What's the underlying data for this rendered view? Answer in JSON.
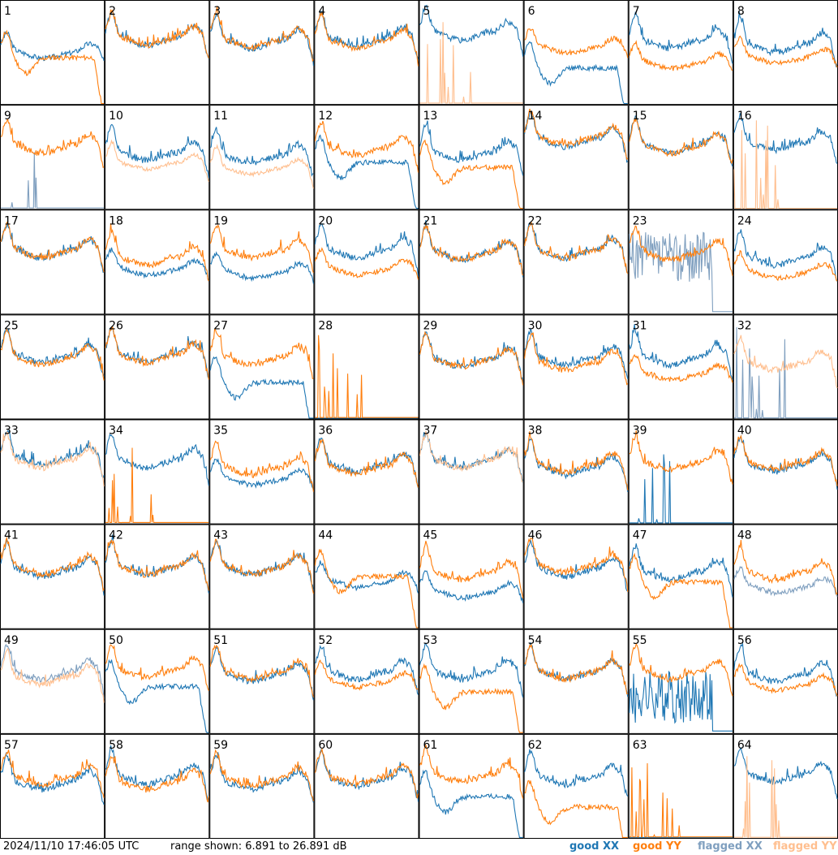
{
  "footer": {
    "timestamp": "2024/11/10 17:46:05 UTC",
    "range_text": "range shown: 6.891 to 26.891 dB"
  },
  "legend": {
    "good_xx": "good XX",
    "good_yy": "good YY",
    "flagged_xx": "flagged XX",
    "flagged_yy": "flagged YY"
  },
  "colors": {
    "good_xx": "#1f77b4",
    "good_yy": "#ff7f0e",
    "flagged_xx": "#7f9fbf",
    "flagged_yy": "#ffbf8f",
    "frame": "#000000"
  },
  "chart_data": {
    "type": "line",
    "grid_layout": [
      8,
      8
    ],
    "ylim": [
      6.891,
      26.891
    ],
    "yunit": "dB",
    "panel_labels": [
      "1",
      "2",
      "3",
      "4",
      "5",
      "6",
      "7",
      "8",
      "9",
      "10",
      "11",
      "12",
      "13",
      "14",
      "15",
      "16",
      "17",
      "18",
      "19",
      "20",
      "21",
      "22",
      "23",
      "24",
      "25",
      "26",
      "27",
      "28",
      "29",
      "30",
      "31",
      "32",
      "33",
      "34",
      "35",
      "36",
      "37",
      "38",
      "39",
      "40",
      "41",
      "42",
      "43",
      "44",
      "45",
      "46",
      "47",
      "48",
      "49",
      "50",
      "51",
      "52",
      "53",
      "54",
      "55",
      "56",
      "57",
      "58",
      "59",
      "60",
      "61",
      "62",
      "63",
      "64"
    ],
    "panels": [
      {
        "label": "1",
        "xx": "good",
        "yy": "good",
        "xx_shape": "mid",
        "yy_shape": "drop",
        "xx_level": 0.55,
        "yy_level": 0.45
      },
      {
        "label": "2",
        "xx": "good",
        "yy": "good",
        "xx_shape": "normal",
        "yy_shape": "normal",
        "xx_level": 0.65,
        "yy_level": 0.65
      },
      {
        "label": "3",
        "xx": "good",
        "yy": "good",
        "xx_shape": "normal",
        "yy_shape": "normal",
        "xx_level": 0.62,
        "yy_level": 0.63
      },
      {
        "label": "4",
        "xx": "good",
        "yy": "good",
        "xx_shape": "normal",
        "yy_shape": "normal",
        "xx_level": 0.64,
        "yy_level": 0.62
      },
      {
        "label": "5",
        "xx": "good",
        "yy": "flagged",
        "xx_shape": "normal",
        "yy_shape": "spikes",
        "xx_level": 0.7,
        "yy_level": 0.05
      },
      {
        "label": "6",
        "xx": "good",
        "yy": "good",
        "xx_shape": "drop",
        "yy_shape": "mid",
        "xx_level": 0.35,
        "yy_level": 0.6
      },
      {
        "label": "7",
        "xx": "good",
        "yy": "good",
        "xx_shape": "normal",
        "yy_shape": "mid",
        "xx_level": 0.62,
        "yy_level": 0.45
      },
      {
        "label": "8",
        "xx": "good",
        "yy": "good",
        "xx_shape": "normal",
        "yy_shape": "mid",
        "xx_level": 0.58,
        "yy_level": 0.5
      },
      {
        "label": "9",
        "xx": "flagged",
        "yy": "good",
        "xx_shape": "spikes",
        "yy_shape": "normal",
        "xx_level": 0.05,
        "yy_level": 0.62
      },
      {
        "label": "10",
        "xx": "good",
        "yy": "flagged",
        "xx_shape": "normal",
        "yy_shape": "low",
        "xx_level": 0.55,
        "yy_level": 0.45
      },
      {
        "label": "11",
        "xx": "good",
        "yy": "flagged",
        "xx_shape": "normal",
        "yy_shape": "low",
        "xx_level": 0.52,
        "yy_level": 0.4
      },
      {
        "label": "12",
        "xx": "good",
        "yy": "good",
        "xx_shape": "drop",
        "yy_shape": "normal",
        "xx_level": 0.45,
        "yy_level": 0.6
      },
      {
        "label": "13",
        "xx": "good",
        "yy": "good",
        "xx_shape": "normal",
        "yy_shape": "drop",
        "xx_level": 0.55,
        "yy_level": 0.4
      },
      {
        "label": "14",
        "xx": "good",
        "yy": "good",
        "xx_shape": "normal",
        "yy_shape": "normal",
        "xx_level": 0.68,
        "yy_level": 0.7
      },
      {
        "label": "15",
        "xx": "good",
        "yy": "good",
        "xx_shape": "normal",
        "yy_shape": "normal",
        "xx_level": 0.63,
        "yy_level": 0.62
      },
      {
        "label": "16",
        "xx": "good",
        "yy": "flagged",
        "xx_shape": "normal",
        "yy_shape": "spikes",
        "xx_level": 0.65,
        "yy_level": 0.03
      },
      {
        "label": "17",
        "xx": "good",
        "yy": "good",
        "xx_shape": "normal",
        "yy_shape": "normal",
        "xx_level": 0.62,
        "yy_level": 0.62
      },
      {
        "label": "18",
        "xx": "good",
        "yy": "good",
        "xx_shape": "mid",
        "yy_shape": "normal",
        "xx_level": 0.48,
        "yy_level": 0.55
      },
      {
        "label": "19",
        "xx": "good",
        "yy": "good",
        "xx_shape": "mid",
        "yy_shape": "normal",
        "xx_level": 0.45,
        "yy_level": 0.62
      },
      {
        "label": "20",
        "xx": "good",
        "yy": "good",
        "xx_shape": "normal",
        "yy_shape": "mid",
        "xx_level": 0.62,
        "yy_level": 0.48
      },
      {
        "label": "21",
        "xx": "good",
        "yy": "good",
        "xx_shape": "normal",
        "yy_shape": "normal",
        "xx_level": 0.6,
        "yy_level": 0.6
      },
      {
        "label": "22",
        "xx": "good",
        "yy": "good",
        "xx_shape": "normal",
        "yy_shape": "normal",
        "xx_level": 0.62,
        "yy_level": 0.62
      },
      {
        "label": "23",
        "xx": "flagged",
        "yy": "good",
        "xx_shape": "noise",
        "yy_shape": "normal",
        "xx_level": 0.3,
        "yy_level": 0.6
      },
      {
        "label": "24",
        "xx": "good",
        "yy": "good",
        "xx_shape": "normal",
        "yy_shape": "mid",
        "xx_level": 0.55,
        "yy_level": 0.45
      },
      {
        "label": "25",
        "xx": "good",
        "yy": "good",
        "xx_shape": "normal",
        "yy_shape": "normal",
        "xx_level": 0.62,
        "yy_level": 0.6
      },
      {
        "label": "26",
        "xx": "good",
        "yy": "good",
        "xx_shape": "normal",
        "yy_shape": "normal",
        "xx_level": 0.63,
        "yy_level": 0.62
      },
      {
        "label": "27",
        "xx": "good",
        "yy": "good",
        "xx_shape": "drop",
        "yy_shape": "normal",
        "xx_level": 0.35,
        "yy_level": 0.6
      },
      {
        "label": "28",
        "xx": "good",
        "yy": "good",
        "xx_shape": "flat",
        "yy_shape": "spikes",
        "xx_level": 0.0,
        "yy_level": 0.05
      },
      {
        "label": "29",
        "xx": "good",
        "yy": "good",
        "xx_shape": "normal",
        "yy_shape": "normal",
        "xx_level": 0.58,
        "yy_level": 0.58
      },
      {
        "label": "30",
        "xx": "good",
        "yy": "good",
        "xx_shape": "normal",
        "yy_shape": "normal",
        "xx_level": 0.6,
        "yy_level": 0.55
      },
      {
        "label": "31",
        "xx": "good",
        "yy": "good",
        "xx_shape": "normal",
        "yy_shape": "mid",
        "xx_level": 0.6,
        "yy_level": 0.48
      },
      {
        "label": "32",
        "xx": "flagged",
        "yy": "flagged",
        "xx_shape": "spikes",
        "yy_shape": "normal",
        "xx_level": 0.03,
        "yy_level": 0.55
      },
      {
        "label": "33",
        "xx": "good",
        "yy": "flagged",
        "xx_shape": "normal",
        "yy_shape": "normal",
        "xx_level": 0.65,
        "yy_level": 0.62
      },
      {
        "label": "34",
        "xx": "good",
        "yy": "good",
        "xx_shape": "normal",
        "yy_shape": "spikes",
        "xx_level": 0.62,
        "yy_level": 0.05
      },
      {
        "label": "35",
        "xx": "good",
        "yy": "good",
        "xx_shape": "mid",
        "yy_shape": "normal",
        "xx_level": 0.48,
        "yy_level": 0.55
      },
      {
        "label": "36",
        "xx": "good",
        "yy": "good",
        "xx_shape": "normal",
        "yy_shape": "normal",
        "xx_level": 0.58,
        "yy_level": 0.56
      },
      {
        "label": "37",
        "xx": "good",
        "yy": "flagged",
        "xx_shape": "normal",
        "yy_shape": "normal",
        "xx_level": 0.62,
        "yy_level": 0.62
      },
      {
        "label": "38",
        "xx": "good",
        "yy": "good",
        "xx_shape": "normal",
        "yy_shape": "normal",
        "xx_level": 0.55,
        "yy_level": 0.58
      },
      {
        "label": "39",
        "xx": "good",
        "yy": "good",
        "xx_shape": "spikes",
        "yy_shape": "normal",
        "xx_level": 0.03,
        "yy_level": 0.6
      },
      {
        "label": "40",
        "xx": "good",
        "yy": "good",
        "xx_shape": "normal",
        "yy_shape": "normal",
        "xx_level": 0.58,
        "yy_level": 0.6
      },
      {
        "label": "41",
        "xx": "good",
        "yy": "good",
        "xx_shape": "normal",
        "yy_shape": "normal",
        "xx_level": 0.58,
        "yy_level": 0.6
      },
      {
        "label": "42",
        "xx": "good",
        "yy": "good",
        "xx_shape": "normal",
        "yy_shape": "normal",
        "xx_level": 0.6,
        "yy_level": 0.6
      },
      {
        "label": "43",
        "xx": "good",
        "yy": "good",
        "xx_shape": "normal",
        "yy_shape": "normal",
        "xx_level": 0.6,
        "yy_level": 0.6
      },
      {
        "label": "44",
        "xx": "good",
        "yy": "good",
        "xx_shape": "mid",
        "yy_shape": "drop",
        "xx_level": 0.5,
        "yy_level": 0.5
      },
      {
        "label": "45",
        "xx": "good",
        "yy": "good",
        "xx_shape": "mid",
        "yy_shape": "normal",
        "xx_level": 0.4,
        "yy_level": 0.55
      },
      {
        "label": "46",
        "xx": "good",
        "yy": "good",
        "xx_shape": "normal",
        "yy_shape": "normal",
        "xx_level": 0.58,
        "yy_level": 0.62
      },
      {
        "label": "47",
        "xx": "good",
        "yy": "good",
        "xx_shape": "normal",
        "yy_shape": "drop",
        "xx_level": 0.55,
        "yy_level": 0.45
      },
      {
        "label": "48",
        "xx": "flagged",
        "yy": "good",
        "xx_shape": "mid",
        "yy_shape": "normal",
        "xx_level": 0.45,
        "yy_level": 0.55
      },
      {
        "label": "49",
        "xx": "flagged",
        "yy": "flagged",
        "xx_shape": "normal",
        "yy_shape": "normal",
        "xx_level": 0.6,
        "yy_level": 0.55
      },
      {
        "label": "50",
        "xx": "good",
        "yy": "good",
        "xx_shape": "drop",
        "yy_shape": "normal",
        "xx_level": 0.45,
        "yy_level": 0.62
      },
      {
        "label": "51",
        "xx": "good",
        "yy": "good",
        "xx_shape": "normal",
        "yy_shape": "normal",
        "xx_level": 0.58,
        "yy_level": 0.6
      },
      {
        "label": "52",
        "xx": "good",
        "yy": "good",
        "xx_shape": "normal",
        "yy_shape": "mid",
        "xx_level": 0.6,
        "yy_level": 0.55
      },
      {
        "label": "53",
        "xx": "good",
        "yy": "good",
        "xx_shape": "normal",
        "yy_shape": "drop",
        "xx_level": 0.6,
        "yy_level": 0.4
      },
      {
        "label": "54",
        "xx": "good",
        "yy": "good",
        "xx_shape": "normal",
        "yy_shape": "normal",
        "xx_level": 0.6,
        "yy_level": 0.6
      },
      {
        "label": "55",
        "xx": "good",
        "yy": "good",
        "xx_shape": "noise",
        "yy_shape": "normal",
        "xx_level": 0.1,
        "yy_level": 0.6
      },
      {
        "label": "56",
        "xx": "good",
        "yy": "good",
        "xx_shape": "normal",
        "yy_shape": "mid",
        "xx_level": 0.58,
        "yy_level": 0.52
      },
      {
        "label": "57",
        "xx": "good",
        "yy": "good",
        "xx_shape": "normal",
        "yy_shape": "normal",
        "xx_level": 0.55,
        "yy_level": 0.6
      },
      {
        "label": "58",
        "xx": "good",
        "yy": "good",
        "xx_shape": "normal",
        "yy_shape": "normal",
        "xx_level": 0.6,
        "yy_level": 0.55
      },
      {
        "label": "59",
        "xx": "good",
        "yy": "good",
        "xx_shape": "normal",
        "yy_shape": "normal",
        "xx_level": 0.55,
        "yy_level": 0.58
      },
      {
        "label": "60",
        "xx": "good",
        "yy": "good",
        "xx_shape": "normal",
        "yy_shape": "normal",
        "xx_level": 0.58,
        "yy_level": 0.6
      },
      {
        "label": "61",
        "xx": "good",
        "yy": "good",
        "xx_shape": "drop",
        "yy_shape": "normal",
        "xx_level": 0.4,
        "yy_level": 0.62
      },
      {
        "label": "62",
        "xx": "good",
        "yy": "good",
        "xx_shape": "normal",
        "yy_shape": "drop",
        "xx_level": 0.6,
        "yy_level": 0.3
      },
      {
        "label": "63",
        "xx": "good",
        "yy": "good",
        "xx_shape": "flat",
        "yy_shape": "spikes",
        "xx_level": 0.0,
        "yy_level": 0.05
      },
      {
        "label": "64",
        "xx": "good",
        "yy": "flagged",
        "xx_shape": "normal",
        "yy_shape": "spikes",
        "xx_level": 0.62,
        "yy_level": 0.03
      }
    ]
  }
}
